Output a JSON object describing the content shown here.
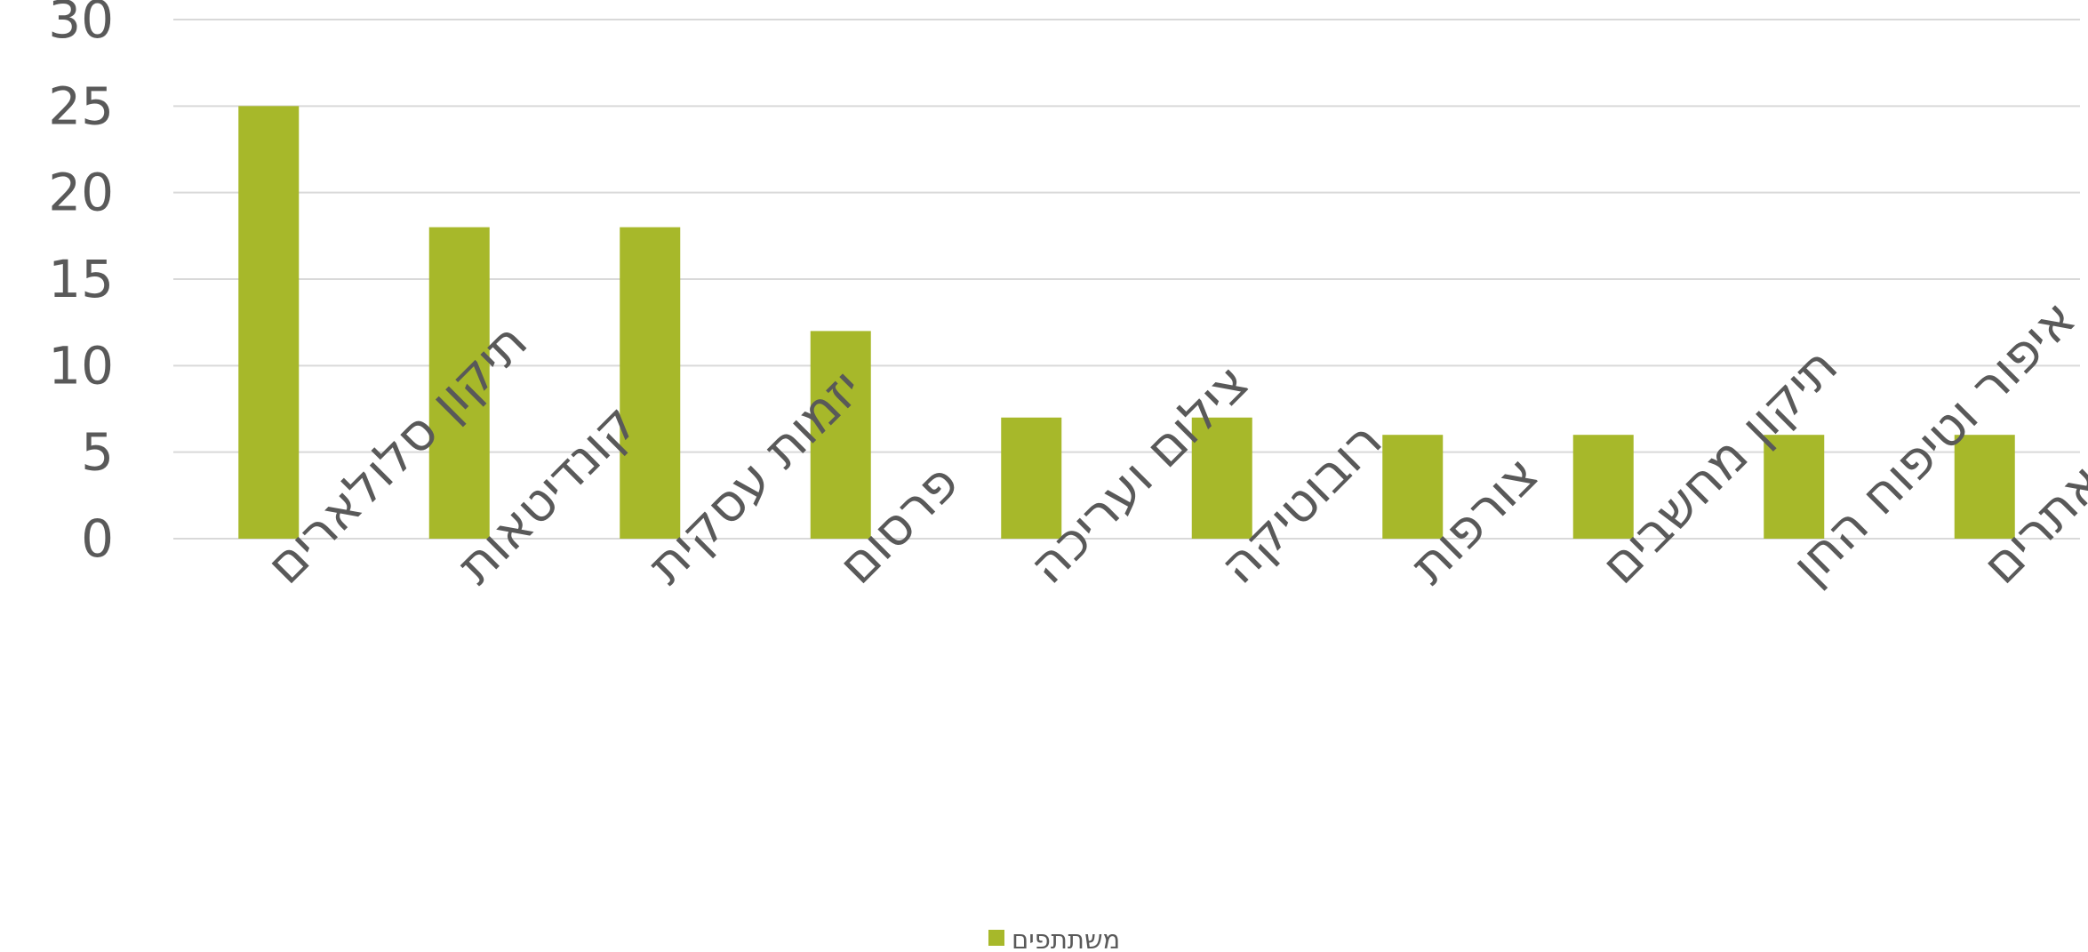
{
  "chart_data": {
    "type": "bar",
    "categories": [
      "תיקון סלולארים",
      "קונדיטאות",
      "יזמות עסקית",
      "פרסום",
      "צילום ועריכה",
      "רובוטיקה",
      "צורפות",
      "תיקון מחשבים",
      "איפור וטיפוח החן",
      "בניית אתרים"
    ],
    "series": [
      {
        "name": "משתתפים",
        "values": [
          25,
          18,
          18,
          12,
          7,
          7,
          6,
          6,
          6,
          6
        ],
        "color": "#a7b82a"
      }
    ],
    "yticks": [
      "0",
      "5",
      "10",
      "15",
      "20",
      "25",
      "30"
    ],
    "ylim": [
      0,
      30
    ],
    "grid": true,
    "legend_position": "bottom-center"
  }
}
